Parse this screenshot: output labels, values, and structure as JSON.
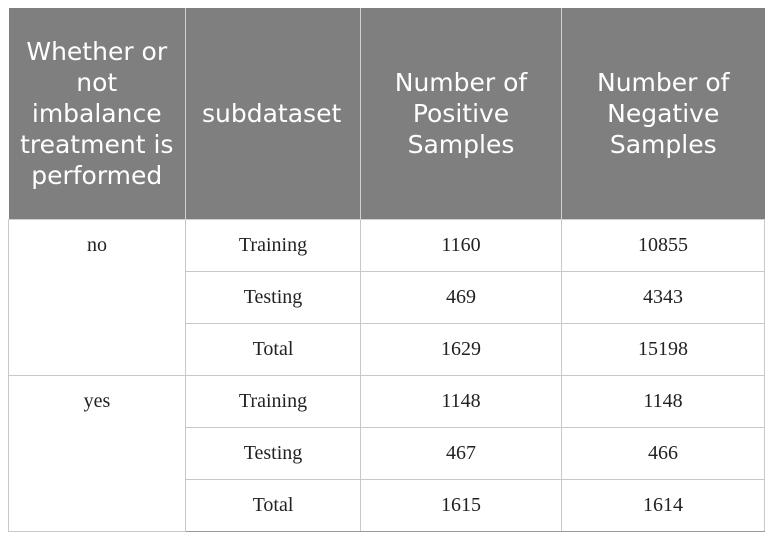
{
  "table": {
    "headers": [
      "Whether or not imbalance treatment is performed",
      "subdataset",
      "Number of Positive Samples",
      "Number of Negative Samples"
    ],
    "groups": [
      {
        "label": "no",
        "rows": [
          {
            "subdataset": "Training",
            "positive": "1160",
            "negative": "10855"
          },
          {
            "subdataset": "Testing",
            "positive": "469",
            "negative": "4343"
          },
          {
            "subdataset": "Total",
            "positive": "1629",
            "negative": "15198"
          }
        ]
      },
      {
        "label": "yes",
        "rows": [
          {
            "subdataset": "Training",
            "positive": "1148",
            "negative": "1148"
          },
          {
            "subdataset": "Testing",
            "positive": "467",
            "negative": "466"
          },
          {
            "subdataset": "Total",
            "positive": "1615",
            "negative": "1614"
          }
        ]
      }
    ]
  }
}
